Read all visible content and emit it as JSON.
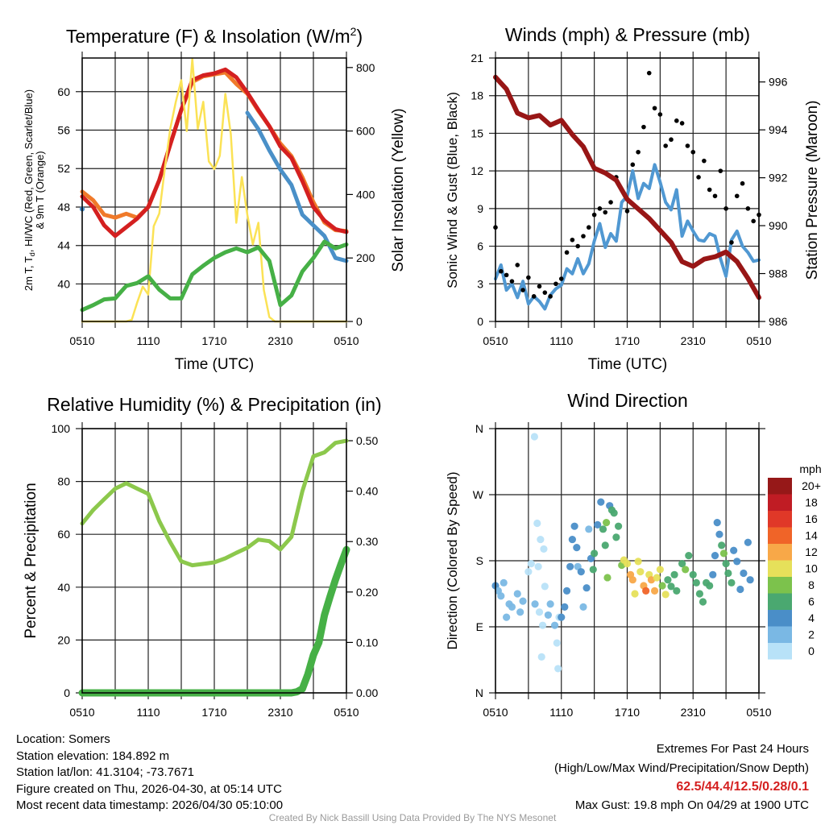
{
  "chart_data": [
    {
      "type": "line",
      "title": "Temperature (F) & Insolation (W/m",
      "title_sup": "2",
      "title_end": ")",
      "xlabel": "Time (UTC)",
      "ylabel_parts": [
        "2m T, T",
        "d",
        ", HI/WC (Red, Green, Scarlet/Blue)"
      ],
      "ylabel_line2": "& 9m T (Orange)",
      "ylabel_right": "Solar Insolation (Yellow)",
      "x_ticks": [
        "0510",
        "1110",
        "1710",
        "2310",
        "0510"
      ],
      "x_range_hours": [
        0,
        24
      ],
      "ylim": [
        36.1,
        63.5
      ],
      "y_ticks": [
        40,
        44,
        48,
        52,
        56,
        60
      ],
      "y_tick_labels": [
        "40",
        "44",
        "48",
        "52",
        "56",
        "60"
      ],
      "ylim_right": [
        0,
        830
      ],
      "y_ticks_right": [
        0,
        200,
        400,
        600,
        800
      ],
      "y_tick_labels_right": [
        "0",
        "200",
        "400",
        "600",
        "800"
      ],
      "grid": true,
      "series": [
        {
          "name": "9m T",
          "color": "#f07a2a",
          "axis": "left",
          "kind": "line",
          "width": 5,
          "step_hours": 1,
          "values": [
            49.6,
            48.7,
            47.2,
            46.9,
            47.3,
            46.9,
            48.0,
            50.8,
            54.5,
            58.1,
            61.0,
            61.6,
            61.8,
            62.0,
            60.8,
            59.8,
            58.0,
            56.4,
            54.6,
            53.3,
            51.1,
            48.5,
            46.4,
            45.6,
            45.5
          ]
        },
        {
          "name": "2m T",
          "color": "#d42020",
          "axis": "left",
          "kind": "line",
          "width": 5,
          "step_hours": 1,
          "values": [
            49.1,
            48.0,
            46.1,
            45.0,
            45.9,
            46.8,
            48.0,
            50.8,
            54.5,
            58.1,
            61.2,
            61.7,
            61.9,
            62.3,
            61.5,
            59.9,
            58.1,
            56.4,
            54.3,
            53.1,
            50.7,
            48.0,
            46.6,
            45.7,
            45.4
          ]
        },
        {
          "name": "HI/WC",
          "color": "#4a90c8",
          "axis": "left",
          "kind": "line",
          "width": 5,
          "step_hours": 1,
          "values": [
            47.8,
            null,
            null,
            null,
            null,
            null,
            null,
            null,
            null,
            null,
            null,
            null,
            null,
            null,
            null,
            57.8,
            56.1,
            53.9,
            51.9,
            50.3,
            47.2,
            46.1,
            45.0,
            42.7,
            42.4
          ]
        },
        {
          "name": "Insolation",
          "color": "#fbe255",
          "axis": "right",
          "kind": "line",
          "width": 2.5,
          "step_hours": 0.5,
          "values": [
            0,
            0,
            0,
            0,
            0,
            0,
            0,
            0,
            0,
            5,
            60,
            110,
            85,
            300,
            340,
            480,
            607,
            692,
            760,
            600,
            827,
            607,
            692,
            504,
            480,
            522,
            717,
            590,
            311,
            455,
            336,
            243,
            311,
            99,
            14,
            0,
            0,
            0,
            0,
            0,
            0,
            0,
            0,
            0,
            0,
            0,
            0,
            0,
            0
          ]
        },
        {
          "name": "2m Td",
          "color": "#46b046",
          "axis": "left",
          "kind": "line",
          "width": 5,
          "step_hours": 1,
          "values": [
            37.3,
            37.8,
            38.4,
            38.5,
            39.8,
            40.1,
            40.8,
            39.4,
            38.5,
            38.5,
            41.0,
            41.9,
            42.7,
            43.3,
            43.7,
            43.3,
            43.8,
            42.4,
            37.8,
            38.8,
            41.3,
            42.7,
            44.4,
            43.7,
            44.1
          ]
        }
      ]
    },
    {
      "type": "line",
      "title": "Winds (mph) & Pressure (mb)",
      "xlabel": "Time (UTC)",
      "ylabel": "Sonic Wind & Gust (Blue, Black)",
      "ylabel_right": "Station Pressure (Maroon)",
      "x_ticks": [
        "0510",
        "1110",
        "1710",
        "2310",
        "0510"
      ],
      "x_range_hours": [
        0,
        24
      ],
      "ylim": [
        0,
        21
      ],
      "y_ticks": [
        0,
        3,
        6,
        9,
        12,
        15,
        18,
        21
      ],
      "y_tick_labels": [
        "0",
        "3",
        "6",
        "9",
        "12",
        "15",
        "18",
        "21"
      ],
      "ylim_right": [
        986,
        997
      ],
      "y_ticks_right": [
        986,
        988,
        990,
        992,
        994,
        996
      ],
      "y_tick_labels_right": [
        "986",
        "988",
        "990",
        "992",
        "994",
        "996"
      ],
      "grid": true,
      "series": [
        {
          "name": "Sonic Wind",
          "color": "#5098d2",
          "axis": "left",
          "kind": "line",
          "width": 4,
          "step_hours": 0.5,
          "values": [
            3.4,
            4.5,
            2.5,
            3.0,
            1.9,
            3.2,
            1.4,
            2.0,
            1.6,
            1.0,
            2.1,
            2.6,
            2.9,
            4.2,
            3.8,
            5.0,
            3.8,
            4.6,
            6.4,
            7.8,
            5.9,
            7.0,
            6.4,
            9.5,
            10.0,
            12.0,
            9.8,
            11.0,
            10.6,
            12.5,
            11.1,
            9.5,
            8.9,
            10.5,
            6.8,
            8.0,
            7.2,
            6.5,
            6.4,
            7.0,
            6.8,
            5.0,
            3.6,
            6.5,
            7.2,
            6.0,
            5.5,
            4.8,
            4.9
          ]
        },
        {
          "name": "Gust",
          "color": "#000000",
          "axis": "left",
          "kind": "dots",
          "radius": 2.8,
          "step_hours": 0.5,
          "values": [
            7.5,
            4.0,
            3.7,
            3.2,
            4.5,
            2.5,
            3.5,
            2.0,
            2.8,
            2.3,
            2.0,
            3.0,
            3.4,
            5.5,
            6.5,
            6.0,
            6.8,
            7.5,
            8.5,
            9.0,
            8.7,
            9.5,
            11.5,
            10.5,
            8.8,
            12.5,
            13.5,
            15.5,
            19.8,
            17.0,
            16.5,
            14.0,
            14.5,
            16.0,
            15.8,
            14.0,
            13.5,
            11.5,
            12.8,
            10.5,
            10.0,
            12.0,
            9.0,
            6.3,
            10.0,
            11.0,
            9.0,
            8.0,
            8.5
          ]
        },
        {
          "name": "Station Pressure",
          "color": "#981616",
          "axis": "right",
          "kind": "line",
          "width": 6,
          "step_hours": 1,
          "values": [
            996.2,
            995.7,
            994.7,
            994.5,
            994.6,
            994.2,
            994.4,
            993.8,
            993.3,
            992.4,
            992.2,
            991.9,
            991.1,
            990.7,
            990.3,
            989.8,
            989.3,
            988.5,
            988.3,
            988.6,
            988.7,
            988.9,
            988.5,
            987.8,
            987.0
          ]
        }
      ]
    },
    {
      "type": "line",
      "title": "Relative Humidity (%) & Precipitation (in)",
      "xlabel": "",
      "ylabel": "Percent & Precipitation",
      "x_ticks": [
        "0510",
        "1110",
        "1710",
        "2310",
        "0510"
      ],
      "x_range_hours": [
        0,
        24
      ],
      "ylim": [
        0,
        100
      ],
      "y_ticks": [
        0,
        20,
        40,
        60,
        80,
        100
      ],
      "y_tick_labels": [
        "0",
        "20",
        "40",
        "60",
        "80",
        "100"
      ],
      "ylim_right": [
        0,
        0.524
      ],
      "y_ticks_right": [
        0,
        0.1,
        0.2,
        0.3,
        0.4,
        0.5
      ],
      "y_tick_labels_right": [
        "0.00",
        "0.10",
        "0.20",
        "0.30",
        "0.40",
        "0.50"
      ],
      "grid": true,
      "series": [
        {
          "name": "Relative Humidity",
          "color": "#8cc84c",
          "axis": "left",
          "kind": "line",
          "width": 5,
          "step_hours": 1,
          "values": [
            64.1,
            69.2,
            73.3,
            77.3,
            79.3,
            77.3,
            75.3,
            65.0,
            57.0,
            49.8,
            48.3,
            48.8,
            49.4,
            50.9,
            53.0,
            54.9,
            58.0,
            57.4,
            54.3,
            59.0,
            76.3,
            89.5,
            91.0,
            94.6,
            95.4
          ]
        },
        {
          "name": "Precipitation",
          "color": "#46b046",
          "axis": "right",
          "kind": "line",
          "width": 9,
          "step_hours": 0.5,
          "values": [
            0,
            0,
            0,
            0,
            0,
            0,
            0,
            0,
            0,
            0,
            0,
            0,
            0,
            0,
            0,
            0,
            0,
            0,
            0,
            0,
            0,
            0,
            0,
            0,
            0,
            0,
            0,
            0,
            0,
            0,
            0,
            0,
            0,
            0,
            0,
            0,
            0,
            0,
            0,
            0.002,
            0.008,
            0.037,
            0.075,
            0.1,
            0.154,
            0.19,
            0.224,
            0.255,
            0.284
          ]
        }
      ]
    },
    {
      "type": "scatter",
      "title": "Wind Direction",
      "ylabel": "Direction (Colored By Speed)",
      "x_ticks": [
        "0510",
        "1110",
        "1710",
        "2310",
        "0510"
      ],
      "x_range_hours": [
        0,
        24
      ],
      "ylim": [
        0,
        360
      ],
      "y_ticks": [
        0,
        90,
        180,
        270,
        360
      ],
      "y_tick_labels": [
        "N",
        "E",
        "S",
        "W",
        "N"
      ],
      "grid": true,
      "legend": {
        "title": "mph",
        "placement": "right",
        "bins": [
          "0",
          "2",
          "4",
          "6",
          "8",
          "10",
          "12",
          "14",
          "16",
          "18",
          "20+"
        ],
        "colors": [
          "#b8e2f8",
          "#7ab8e4",
          "#4a8ec8",
          "#4aa870",
          "#7cc24c",
          "#e6e05a",
          "#f8a848",
          "#f06428",
          "#e03828",
          "#c01c24",
          "#961818"
        ]
      },
      "points": [
        [
          0,
          146,
          4
        ],
        [
          0.25,
          139,
          3
        ],
        [
          0.5,
          132,
          2
        ],
        [
          0.75,
          150,
          2
        ],
        [
          1,
          103,
          3
        ],
        [
          1.25,
          121,
          2
        ],
        [
          1.5,
          117,
          3
        ],
        [
          2,
          135,
          2
        ],
        [
          2.25,
          110,
          2
        ],
        [
          2.5,
          125,
          2
        ],
        [
          3,
          165,
          1
        ],
        [
          3.25,
          176,
          1
        ],
        [
          3.55,
          349,
          0
        ],
        [
          3.6,
          121,
          2
        ],
        [
          3.8,
          231,
          1
        ],
        [
          3.9,
          172,
          0
        ],
        [
          4.0,
          110,
          1
        ],
        [
          4.1,
          209,
          1
        ],
        [
          4.2,
          49,
          0
        ],
        [
          4.3,
          92,
          0
        ],
        [
          4.4,
          196,
          0
        ],
        [
          4.5,
          145,
          0
        ],
        [
          4.8,
          106,
          2
        ],
        [
          5,
          121,
          2
        ],
        [
          5.4,
          92,
          2
        ],
        [
          5.6,
          68,
          0
        ],
        [
          5.7,
          33,
          0
        ],
        [
          5.8,
          103,
          1
        ],
        [
          6,
          103,
          4
        ],
        [
          6.3,
          117,
          4
        ],
        [
          6.5,
          139,
          4
        ],
        [
          6.8,
          172,
          4
        ],
        [
          7,
          209,
          4
        ],
        [
          7.2,
          227,
          4
        ],
        [
          7.4,
          198,
          4
        ],
        [
          7.5,
          172,
          2
        ],
        [
          7.8,
          165,
          4
        ],
        [
          8,
          117,
          2
        ],
        [
          8.3,
          143,
          4
        ],
        [
          8.5,
          223,
          2
        ],
        [
          8.7,
          183,
          4
        ],
        [
          8.9,
          168,
          6
        ],
        [
          9,
          190,
          6
        ],
        [
          9.3,
          229,
          4
        ],
        [
          9.6,
          260,
          4
        ],
        [
          9.8,
          223,
          6
        ],
        [
          10,
          201,
          6
        ],
        [
          10.1,
          232,
          8
        ],
        [
          10.2,
          157,
          8
        ],
        [
          10.4,
          255,
          4
        ],
        [
          10.6,
          249,
          6
        ],
        [
          10.8,
          245,
          6
        ],
        [
          11,
          212,
          6
        ],
        [
          11.2,
          227,
          6
        ],
        [
          11.5,
          174,
          8
        ],
        [
          11.7,
          181,
          10
        ],
        [
          12,
          176,
          10
        ],
        [
          12.3,
          161,
          12
        ],
        [
          12.5,
          154,
          12
        ],
        [
          12.7,
          135,
          10
        ],
        [
          13,
          179,
          10
        ],
        [
          13.2,
          165,
          10
        ],
        [
          13.5,
          146,
          12
        ],
        [
          13.7,
          139,
          14
        ],
        [
          14,
          161,
          10
        ],
        [
          14.2,
          154,
          12
        ],
        [
          14.5,
          139,
          12
        ],
        [
          14.7,
          157,
          10
        ],
        [
          15,
          168,
          10
        ],
        [
          15.2,
          146,
          8
        ],
        [
          15.5,
          134,
          10
        ],
        [
          15.7,
          154,
          6
        ],
        [
          16,
          145,
          6
        ],
        [
          16.3,
          161,
          6
        ],
        [
          16.5,
          139,
          6
        ],
        [
          17,
          176,
          6
        ],
        [
          17.3,
          168,
          8
        ],
        [
          17.6,
          187,
          6
        ],
        [
          18,
          161,
          6
        ],
        [
          18.3,
          150,
          6
        ],
        [
          18.6,
          135,
          6
        ],
        [
          18.9,
          124,
          6
        ],
        [
          19.2,
          150,
          6
        ],
        [
          19.5,
          146,
          6
        ],
        [
          19.8,
          161,
          4
        ],
        [
          20,
          187,
          4
        ],
        [
          20.2,
          232,
          4
        ],
        [
          20.4,
          216,
          4
        ],
        [
          20.6,
          201,
          6
        ],
        [
          20.8,
          190,
          8
        ],
        [
          21,
          176,
          6
        ],
        [
          21.2,
          163,
          6
        ],
        [
          21.5,
          150,
          6
        ],
        [
          21.7,
          194,
          4
        ],
        [
          22,
          179,
          4
        ],
        [
          22.3,
          141,
          4
        ],
        [
          22.6,
          163,
          4
        ],
        [
          23,
          205,
          4
        ],
        [
          23.2,
          154,
          4
        ]
      ]
    }
  ],
  "footer": {
    "location": "Location: Somers",
    "elevation": "Station elevation: 184.892 m",
    "latlon": "Station lat/lon: 41.3104; -73.7671",
    "created": "Figure created on Thu, 2026-04-30, at 05:14 UTC",
    "recent": "Most recent data timestamp: 2026/04/30 05:10:00",
    "extremes_title": "Extremes For Past 24 Hours",
    "extremes_fields": "(High/Low/Max Wind/Precipitation/Snow Depth)",
    "extremes_values": "62.5/44.4/12.5/0.28/0.1",
    "max_gust": "Max Gust: 19.8 mph On 04/29 at 1900 UTC",
    "credit": "Created By Nick Bassill Using Data Provided By The NYS Mesonet"
  }
}
